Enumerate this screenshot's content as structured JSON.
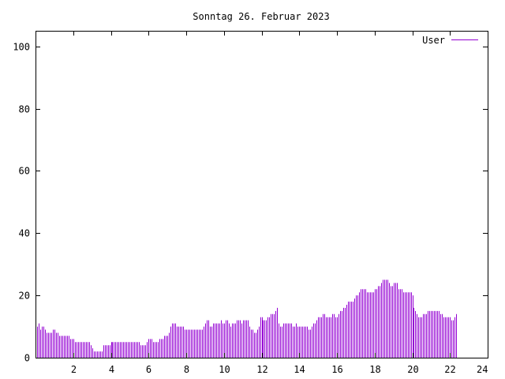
{
  "chart_data": {
    "type": "bar",
    "title": "Sonntag 26. Februar 2023",
    "xlabel": "",
    "ylabel": "",
    "xlim": [
      0,
      24
    ],
    "ylim": [
      0,
      105
    ],
    "x_ticks": [
      2,
      4,
      6,
      8,
      10,
      12,
      14,
      16,
      18,
      20,
      22,
      24
    ],
    "y_ticks": [
      0,
      20,
      40,
      60,
      80,
      100
    ],
    "grid": false,
    "legend": "top-right",
    "series": [
      {
        "name": "User",
        "color": "#9400d3",
        "sample_interval_minutes": 5,
        "values": [
          10,
          10,
          11,
          9,
          10,
          10,
          9,
          8,
          8,
          8,
          8,
          9,
          9,
          8,
          8,
          7,
          7,
          7,
          7,
          7,
          7,
          7,
          6,
          6,
          6,
          5,
          5,
          5,
          5,
          5,
          5,
          5,
          5,
          5,
          5,
          4,
          3,
          2,
          2,
          2,
          2,
          2,
          2,
          4,
          4,
          4,
          4,
          4,
          5,
          5,
          5,
          5,
          5,
          5,
          5,
          5,
          5,
          5,
          5,
          5,
          5,
          5,
          5,
          5,
          5,
          5,
          5,
          4,
          4,
          4,
          4,
          5,
          6,
          6,
          6,
          5,
          5,
          5,
          5,
          6,
          6,
          6,
          7,
          7,
          7,
          8,
          10,
          11,
          11,
          11,
          10,
          10,
          10,
          10,
          10,
          9,
          9,
          9,
          9,
          9,
          9,
          9,
          9,
          9,
          9,
          9,
          9,
          10,
          11,
          12,
          12,
          10,
          10,
          11,
          11,
          11,
          11,
          11,
          12,
          11,
          11,
          12,
          12,
          11,
          10,
          11,
          11,
          11,
          12,
          12,
          12,
          11,
          12,
          12,
          12,
          12,
          10,
          9,
          9,
          8,
          8,
          9,
          10,
          13,
          13,
          12,
          12,
          12,
          13,
          13,
          14,
          14,
          14,
          15,
          16,
          11,
          10,
          10,
          11,
          11,
          11,
          11,
          11,
          11,
          10,
          10,
          11,
          10,
          10,
          10,
          10,
          10,
          10,
          10,
          9,
          9,
          10,
          11,
          11,
          12,
          13,
          13,
          13,
          14,
          14,
          13,
          13,
          13,
          13,
          14,
          14,
          13,
          13,
          14,
          15,
          15,
          16,
          16,
          17,
          18,
          18,
          18,
          18,
          19,
          20,
          20,
          21,
          22,
          22,
          22,
          22,
          21,
          21,
          21,
          21,
          21,
          22,
          22,
          23,
          23,
          24,
          25,
          25,
          25,
          25,
          24,
          23,
          23,
          24,
          24,
          24,
          22,
          22,
          22,
          21,
          21,
          21,
          21,
          21,
          21,
          20,
          16,
          15,
          14,
          13,
          13,
          13,
          14,
          14,
          14,
          15,
          15,
          15,
          15,
          15,
          15,
          15,
          15,
          14,
          14,
          13,
          13,
          13,
          13,
          13,
          12,
          12,
          13,
          14
        ]
      }
    ]
  }
}
